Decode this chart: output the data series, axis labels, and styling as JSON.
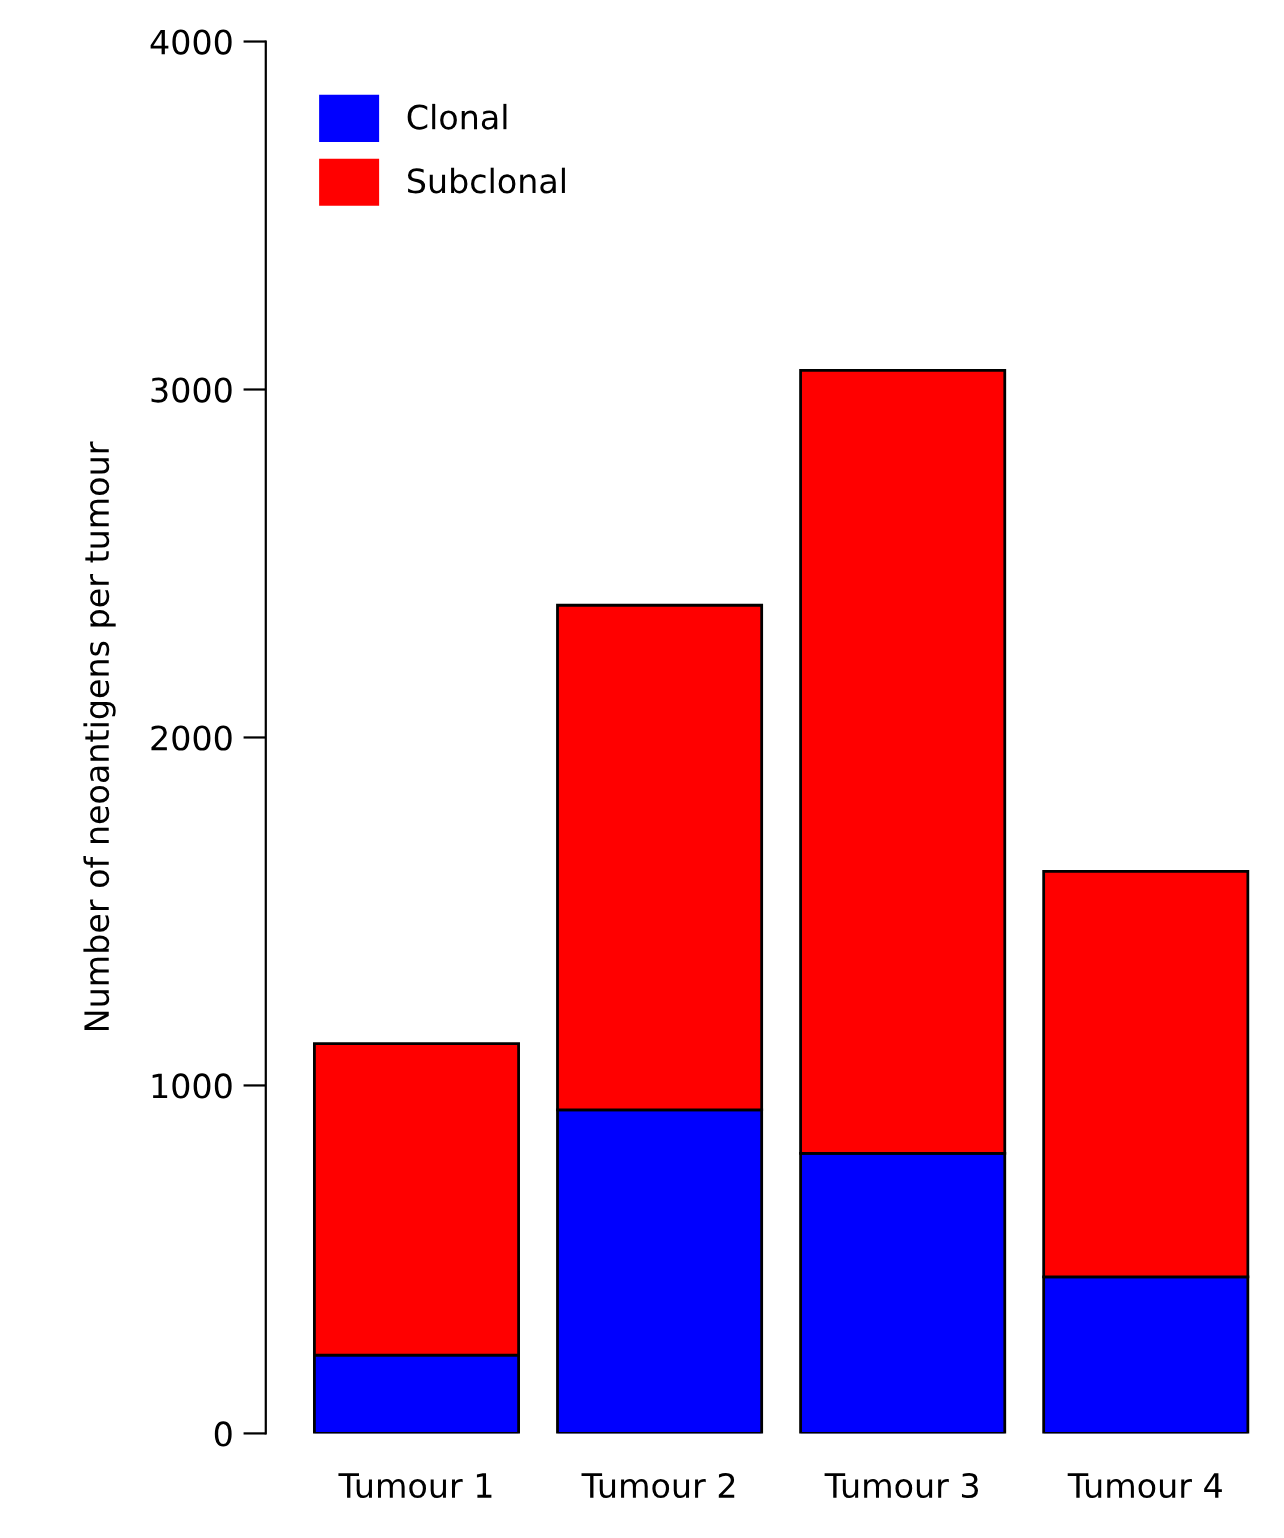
{
  "chart_data": {
    "type": "bar",
    "stacked": true,
    "ylabel": "Number of neoantigens per tumour",
    "categories": [
      "Tumour 1",
      "Tumour 2",
      "Tumour 3",
      "Tumour 4"
    ],
    "series": [
      {
        "name": "Clonal",
        "color": "#0000ff",
        "values": [
          225,
          930,
          805,
          450
        ]
      },
      {
        "name": "Subclonal",
        "color": "#ff0000",
        "values": [
          895,
          1450,
          2250,
          1165
        ]
      }
    ],
    "ylim": [
      0,
      4000
    ],
    "yticks": [
      0,
      1000,
      2000,
      3000,
      4000
    ],
    "grid": false,
    "legend": "top left"
  }
}
